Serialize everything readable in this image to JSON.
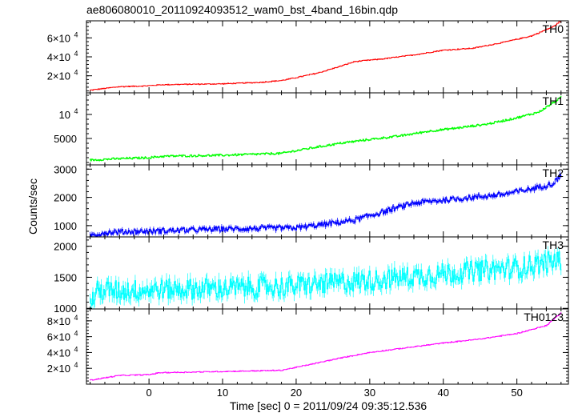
{
  "chart_data": {
    "type": "line",
    "title": "ae806080010_20110924093512_wam0_bst_4band_16bin.qdp",
    "xlabel": "Time [sec] 0 = 2011/09/24 09:35:12.536",
    "ylabel": "Counts/sec",
    "xlim": [
      -8.5,
      57
    ],
    "x_ticks": [
      "0",
      "10",
      "20",
      "30",
      "40",
      "50"
    ],
    "grid": false,
    "panels": [
      {
        "name": "TH0",
        "color": "#ff0000",
        "ylim": [
          2000,
          78000
        ],
        "y_ticks": [
          {
            "value": 20000,
            "mant": "2×10",
            "exp": "4"
          },
          {
            "value": 40000,
            "mant": "4×10",
            "exp": "4"
          },
          {
            "value": 60000,
            "mant": "6×10",
            "exp": "4"
          }
        ],
        "noise": 500,
        "trend": [
          [
            -8,
            4800
          ],
          [
            -4,
            8500
          ],
          [
            0,
            9500
          ],
          [
            1.5,
            10500
          ],
          [
            5,
            11000
          ],
          [
            10,
            11500
          ],
          [
            15,
            13000
          ],
          [
            18,
            15000
          ],
          [
            20,
            18000
          ],
          [
            23,
            23000
          ],
          [
            26,
            30000
          ],
          [
            28,
            35000
          ],
          [
            32,
            38000
          ],
          [
            36,
            42000
          ],
          [
            40,
            47000
          ],
          [
            44,
            49000
          ],
          [
            48,
            55000
          ],
          [
            52,
            62000
          ],
          [
            55,
            72000
          ],
          [
            56,
            78000
          ]
        ]
      },
      {
        "name": "TH1",
        "color": "#00ff00",
        "ylim": [
          -500,
          14500
        ],
        "y_ticks": [
          {
            "value": 5000,
            "label": "5000"
          },
          {
            "value": 10000,
            "mant": "10",
            "exp": "4"
          }
        ],
        "noise": 200,
        "trend": [
          [
            -8,
            500
          ],
          [
            -4,
            800
          ],
          [
            0,
            1000
          ],
          [
            2,
            1300
          ],
          [
            10,
            1500
          ],
          [
            18,
            1900
          ],
          [
            22,
            3000
          ],
          [
            26,
            4000
          ],
          [
            30,
            4800
          ],
          [
            34,
            5500
          ],
          [
            38,
            6500
          ],
          [
            42,
            7200
          ],
          [
            46,
            8000
          ],
          [
            50,
            9300
          ],
          [
            53,
            10500
          ],
          [
            56,
            13500
          ]
        ]
      },
      {
        "name": "TH2",
        "color": "#0000ff",
        "ylim": [
          600,
          3150
        ],
        "y_ticks": [
          {
            "value": 1000,
            "label": "1000"
          },
          {
            "value": 2000,
            "label": "2000"
          },
          {
            "value": 3000,
            "label": "3000"
          }
        ],
        "noise": 90,
        "trend": [
          [
            -8,
            650
          ],
          [
            -6,
            750
          ],
          [
            -4,
            780
          ],
          [
            0,
            800
          ],
          [
            10,
            880
          ],
          [
            15,
            900
          ],
          [
            20,
            920
          ],
          [
            24,
            1050
          ],
          [
            28,
            1200
          ],
          [
            32,
            1500
          ],
          [
            36,
            1800
          ],
          [
            40,
            1900
          ],
          [
            44,
            2000
          ],
          [
            48,
            2100
          ],
          [
            52,
            2300
          ],
          [
            55,
            2500
          ],
          [
            56,
            2800
          ]
        ]
      },
      {
        "name": "TH3",
        "color": "#00ffff",
        "ylim": [
          990,
          2150
        ],
        "y_ticks": [
          {
            "value": 1000,
            "label": "1000"
          },
          {
            "value": 1500,
            "label": "1500"
          },
          {
            "value": 2000,
            "label": "2000"
          }
        ],
        "noise": 120,
        "trend": [
          [
            -8,
            1080
          ],
          [
            -7,
            1280
          ],
          [
            0,
            1300
          ],
          [
            10,
            1320
          ],
          [
            20,
            1360
          ],
          [
            30,
            1450
          ],
          [
            40,
            1560
          ],
          [
            50,
            1650
          ],
          [
            56,
            1780
          ]
        ]
      },
      {
        "name": "TH0123",
        "color": "#ff00ff",
        "ylim": [
          0,
          95000
        ],
        "y_ticks": [
          {
            "value": 20000,
            "mant": "2×10",
            "exp": "4"
          },
          {
            "value": 40000,
            "mant": "4×10",
            "exp": "4"
          },
          {
            "value": 60000,
            "mant": "6×10",
            "exp": "4"
          },
          {
            "value": 80000,
            "mant": "8×10",
            "exp": "4"
          }
        ],
        "noise": 600,
        "trend": [
          [
            -8,
            5000
          ],
          [
            -4,
            11000
          ],
          [
            0,
            12000
          ],
          [
            1.5,
            14500
          ],
          [
            10,
            16000
          ],
          [
            18,
            17500
          ],
          [
            22,
            25000
          ],
          [
            26,
            33000
          ],
          [
            30,
            40000
          ],
          [
            35,
            46000
          ],
          [
            40,
            52000
          ],
          [
            45,
            57000
          ],
          [
            50,
            64000
          ],
          [
            54,
            74000
          ],
          [
            56,
            90000
          ]
        ]
      }
    ]
  }
}
